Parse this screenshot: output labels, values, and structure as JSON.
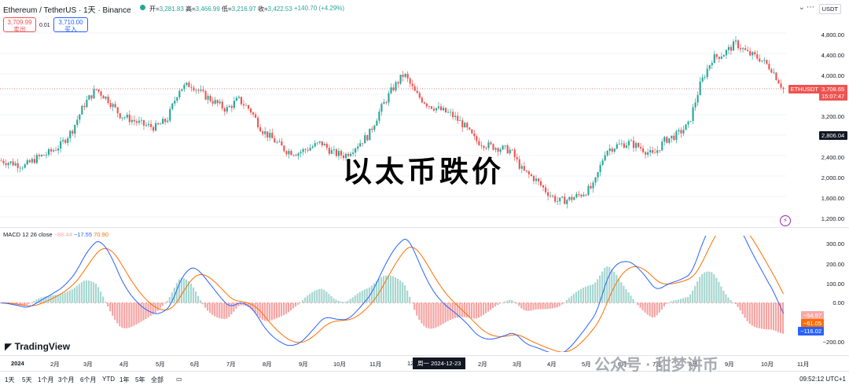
{
  "header": {
    "title": "Ethereum / TetherUS · 1天 · Binance",
    "ohlc": [
      {
        "k": "开=",
        "v": "3,281.83"
      },
      {
        "k": "高=",
        "v": "3,466.99"
      },
      {
        "k": "低=",
        "v": "3,216.97"
      },
      {
        "k": "收=",
        "v": "3,422.53"
      },
      {
        "k": "",
        "v": "+140.70 (+4.29%)"
      }
    ],
    "sell_price": "3,709.99",
    "sell_label": "卖出",
    "spread": "0.01",
    "buy_price": "3,710.00",
    "buy_label": "买入",
    "currency": "USDT",
    "down_icon": "chevron-down-icon",
    "dots_icon": "more-icon"
  },
  "price_axis": [
    "4,800.00",
    "4,400.00",
    "4,000.00",
    "3,600.00",
    "3,200.00",
    "2,800.00",
    "2,400.00",
    "2,000.00",
    "1,600.00",
    "1,200.00"
  ],
  "price_tags": {
    "symbol": "ETHUSDT",
    "last": "3,708.65",
    "countdown": "15:07:47",
    "crosshair": "2,806.04",
    "up_color": "#26a69a",
    "down_color": "#ef5350"
  },
  "macd": {
    "label": "MACD 12 26 close",
    "hist": "−88.44",
    "macd": "−17.55",
    "signal": "70.90",
    "axis": [
      "300.00",
      "200.00",
      "100.00",
      "0.00",
      "−200.00"
    ],
    "tags": [
      "−54.97",
      "−61.05",
      "−116.02"
    ],
    "macd_color": "#2962ff",
    "signal_color": "#ff6d00"
  },
  "time_axis": [
    "2024",
    "2月",
    "3月",
    "4月",
    "5月",
    "6月",
    "7月",
    "8月",
    "9月",
    "10月",
    "11月",
    "12",
    "2月",
    "3月",
    "4月",
    "5月",
    "6月",
    "7月",
    "8月",
    "9月",
    "10月",
    "11月"
  ],
  "crosshair_date": "周一 2024-12-23",
  "timeframes": [
    "1天",
    "5天",
    "1个月",
    "3个月",
    "6个月",
    "YTD",
    "1年",
    "5年",
    "全部"
  ],
  "clock": "09:52:12 UTC+1",
  "overlay": {
    "headline": "以太币跌价",
    "brand": "TradingView",
    "watermark": "公众号 · 甜梦讲币"
  },
  "chart_data": {
    "type": "candlestick",
    "x_range": [
      "2024-01",
      "2025-11"
    ],
    "y_range": [
      1200,
      4900
    ],
    "closes": [
      2300,
      2250,
      2200,
      2350,
      2450,
      2600,
      2900,
      3400,
      3700,
      3500,
      3200,
      3100,
      3000,
      2950,
      3100,
      3700,
      3800,
      3600,
      3450,
      3300,
      3500,
      3300,
      2900,
      2700,
      2500,
      2450,
      2550,
      2650,
      2450,
      2400,
      2600,
      2800,
      3300,
      3700,
      4000,
      3600,
      3400,
      3300,
      3200,
      3000,
      2700,
      2600,
      2550,
      2500,
      2100,
      1950,
      1700,
      1500,
      1550,
      1650,
      1800,
      2500,
      2600,
      2650,
      2550,
      2400,
      2700,
      2800,
      3000,
      3800,
      4300,
      4400,
      4600,
      4400,
      4300,
      4100,
      3700
    ],
    "macd_axis_range": [
      -250,
      320
    ]
  }
}
